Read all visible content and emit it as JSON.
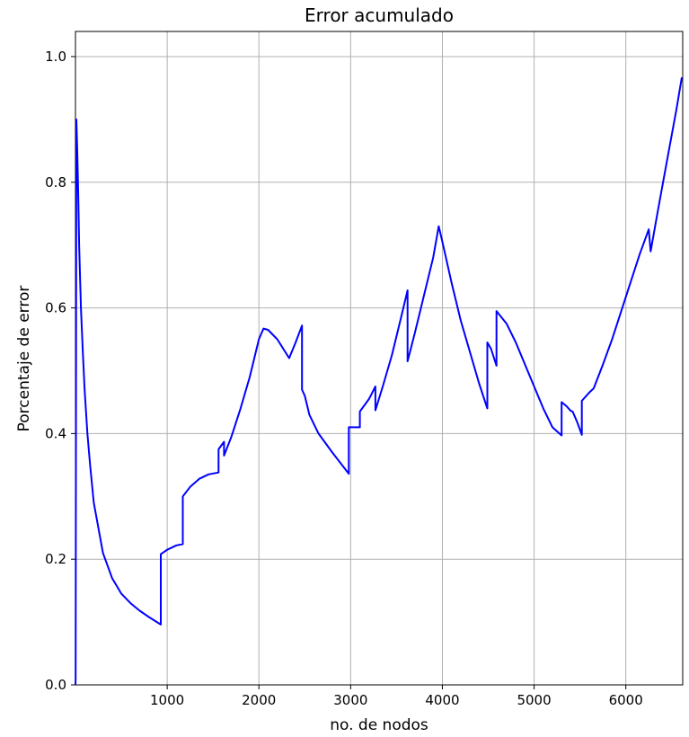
{
  "chart_data": {
    "type": "line",
    "title": "Error acumulado",
    "xlabel": "no. de nodos",
    "ylabel": "Porcentaje de error",
    "xlim": [
      0,
      6620
    ],
    "ylim": [
      0,
      1.04
    ],
    "grid": true,
    "line_color": "#0000ff",
    "x_ticks": [
      1000,
      2000,
      3000,
      4000,
      5000,
      6000
    ],
    "x_tick_labels": [
      "1000",
      "2000",
      "3000",
      "4000",
      "5000",
      "6000"
    ],
    "y_ticks": [
      0.0,
      0.2,
      0.4,
      0.6,
      0.8,
      1.0
    ],
    "y_tick_labels": [
      "0.0",
      "0.2",
      "0.4",
      "0.6",
      "0.8",
      "1.0"
    ],
    "series": [
      {
        "x": [
          0,
          2,
          10,
          20,
          30,
          40,
          60,
          80,
          100,
          130,
          160,
          200,
          250,
          300,
          350,
          400,
          500,
          600,
          700,
          800,
          930,
          930,
          1000,
          1100,
          1170,
          1170,
          1250,
          1350,
          1450,
          1560,
          1560,
          1620,
          1620,
          1700,
          1800,
          1900,
          2000,
          2050,
          2100,
          2200,
          2330,
          2400,
          2470,
          2470,
          2500,
          2550,
          2650,
          2800,
          2980,
          2980,
          3100,
          3100,
          3200,
          3270,
          3270,
          3350,
          3450,
          3550,
          3620,
          3620,
          3700,
          3800,
          3900,
          3960,
          4000,
          4100,
          4200,
          4300,
          4400,
          4490,
          4490,
          4530,
          4590,
          4590,
          4700,
          4800,
          4900,
          5000,
          5100,
          5200,
          5300,
          5300,
          5350,
          5400,
          5420,
          5470,
          5520,
          5520,
          5600,
          5650,
          5750,
          5850,
          5950,
          6050,
          6150,
          6250,
          6270,
          6270,
          6350,
          6450,
          6550,
          6610
        ],
        "y": [
          0.0,
          0.01,
          0.9,
          0.85,
          0.78,
          0.7,
          0.6,
          0.53,
          0.47,
          0.4,
          0.35,
          0.29,
          0.25,
          0.21,
          0.19,
          0.17,
          0.145,
          0.13,
          0.118,
          0.108,
          0.096,
          0.208,
          0.215,
          0.222,
          0.224,
          0.3,
          0.315,
          0.328,
          0.335,
          0.338,
          0.375,
          0.387,
          0.365,
          0.395,
          0.44,
          0.49,
          0.55,
          0.567,
          0.565,
          0.55,
          0.52,
          0.545,
          0.572,
          0.47,
          0.46,
          0.43,
          0.4,
          0.37,
          0.336,
          0.41,
          0.41,
          0.435,
          0.455,
          0.475,
          0.437,
          0.475,
          0.525,
          0.585,
          0.628,
          0.515,
          0.56,
          0.62,
          0.68,
          0.73,
          0.705,
          0.64,
          0.58,
          0.53,
          0.48,
          0.44,
          0.545,
          0.535,
          0.508,
          0.595,
          0.575,
          0.545,
          0.51,
          0.475,
          0.44,
          0.41,
          0.397,
          0.45,
          0.444,
          0.436,
          0.435,
          0.418,
          0.398,
          0.452,
          0.465,
          0.472,
          0.51,
          0.55,
          0.595,
          0.64,
          0.685,
          0.725,
          0.69,
          0.69,
          0.755,
          0.835,
          0.915,
          0.967
        ]
      }
    ]
  }
}
